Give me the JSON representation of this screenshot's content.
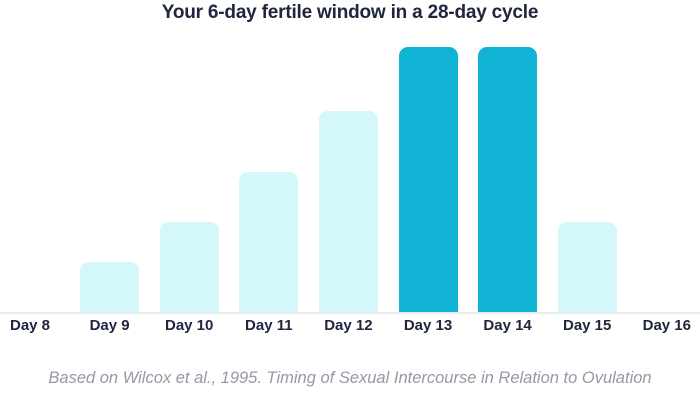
{
  "colors": {
    "background": "#ffffff",
    "bar_light": "#d4f7fc",
    "bar_dark": "#10b3d3",
    "title_text": "#20263d",
    "label_text": "#20263d",
    "footer_text": "#9399a5",
    "axis_line": "#e9ebee"
  },
  "chart_data": {
    "type": "bar",
    "title": "Your 6-day fertile window in a 28-day cycle",
    "categories": [
      "Day 8",
      "Day 9",
      "Day 10",
      "Day 11",
      "Day 12",
      "Day 13",
      "Day 14",
      "Day 15",
      "Day 16"
    ],
    "values": [
      0,
      0.19,
      0.34,
      0.53,
      0.76,
      1.0,
      1.0,
      0.34,
      0
    ],
    "highlighted_categories": [
      "Day 13",
      "Day 14"
    ],
    "xlabel": "",
    "ylabel": "",
    "ylim": [
      0,
      1
    ],
    "y_axis_shown": false,
    "grid": false,
    "legend": false,
    "annotation": "Based on Wilcox et al., 1995. Timing of Sexual Intercourse in Relation to Ovulation"
  }
}
